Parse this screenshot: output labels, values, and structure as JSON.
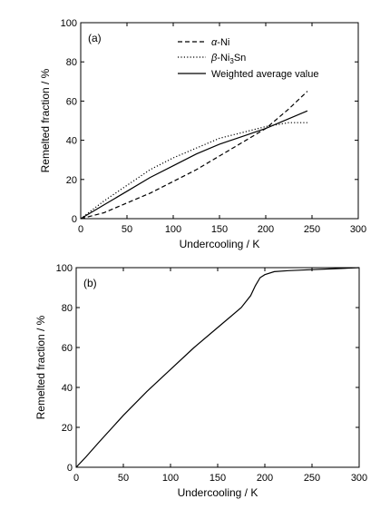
{
  "chart_data": [
    {
      "panel_label": "(a)",
      "type": "line",
      "xlabel": "Undercooling / K",
      "ylabel": "Remelted fraction / %",
      "xlim": [
        0,
        300
      ],
      "ylim": [
        0,
        100
      ],
      "xticks": [
        "0",
        "50",
        "100",
        "150",
        "200",
        "250",
        "300"
      ],
      "yticks": [
        "0",
        "20",
        "40",
        "60",
        "80",
        "100"
      ],
      "legend_position": "top-right",
      "series": [
        {
          "name": "α-Ni",
          "legend_parts": [
            "α",
            "-Ni",
            "",
            ""
          ],
          "style": "dashed",
          "x": [
            0,
            25,
            50,
            75,
            100,
            125,
            150,
            175,
            200,
            225,
            245
          ],
          "y": [
            0,
            3,
            8,
            13,
            19,
            25,
            32,
            39,
            46,
            56,
            65
          ]
        },
        {
          "name": "β-Ni3Sn",
          "legend_parts": [
            "β",
            "-Ni",
            "3",
            "Sn"
          ],
          "style": "dotted",
          "x": [
            0,
            25,
            50,
            75,
            100,
            125,
            150,
            175,
            200,
            225,
            245
          ],
          "y": [
            0,
            9,
            17,
            25,
            31,
            36,
            41,
            44,
            47,
            49,
            49
          ]
        },
        {
          "name": "Weighted average value",
          "legend_parts": [
            "",
            "Weighted average value",
            "",
            ""
          ],
          "style": "solid",
          "x": [
            0,
            25,
            50,
            75,
            100,
            125,
            150,
            175,
            200,
            225,
            245
          ],
          "y": [
            0,
            7,
            14,
            21,
            27,
            33,
            38,
            42,
            46,
            51,
            55
          ]
        }
      ]
    },
    {
      "panel_label": "(b)",
      "type": "line",
      "xlabel": "Undercooling / K",
      "ylabel": "Remelted fraction / %",
      "xlim": [
        0,
        300
      ],
      "ylim": [
        0,
        100
      ],
      "xticks": [
        "0",
        "50",
        "100",
        "150",
        "200",
        "250",
        "300"
      ],
      "yticks": [
        "0",
        "20",
        "40",
        "60",
        "80",
        "100"
      ],
      "series": [
        {
          "name": "",
          "style": "solid",
          "x": [
            0,
            10,
            25,
            50,
            75,
            100,
            125,
            150,
            175,
            185,
            190,
            195,
            200,
            210,
            225,
            250,
            275,
            300
          ],
          "y": [
            0,
            5,
            13,
            26,
            38,
            49,
            60,
            70,
            80,
            86,
            91,
            95,
            96.5,
            98,
            98.5,
            99,
            99.5,
            100
          ]
        }
      ]
    }
  ]
}
